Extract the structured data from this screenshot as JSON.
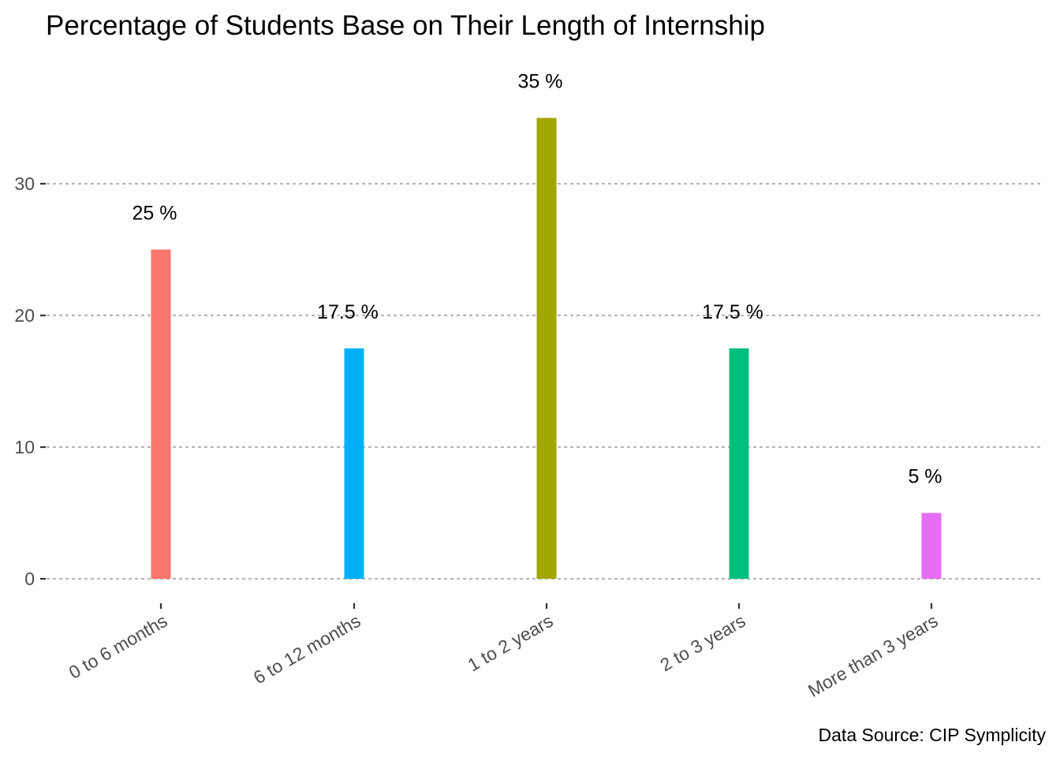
{
  "chart_data": {
    "type": "bar",
    "title": "Percentage of Students Base on Their Length of Internship",
    "xlabel": "",
    "ylabel": "",
    "categories": [
      "0 to 6 months",
      "6 to 12 months",
      "1 to 2 years",
      "2 to 3 years",
      "More than 3 years"
    ],
    "values": [
      25,
      17.5,
      35,
      17.5,
      5
    ],
    "data_labels": [
      "25 %",
      "17.5 %",
      "35 %",
      "17.5 %",
      "5 %"
    ],
    "colors": [
      "#F8766D",
      "#00B0F6",
      "#A3A500",
      "#00BF7D",
      "#E76BF3"
    ],
    "y_ticks": [
      0,
      10,
      20,
      30
    ],
    "ylim": [
      0,
      35
    ],
    "grid": "horizontal dotted major gridlines",
    "legend": "none",
    "caption": "Data Source: CIP Symplicity"
  }
}
